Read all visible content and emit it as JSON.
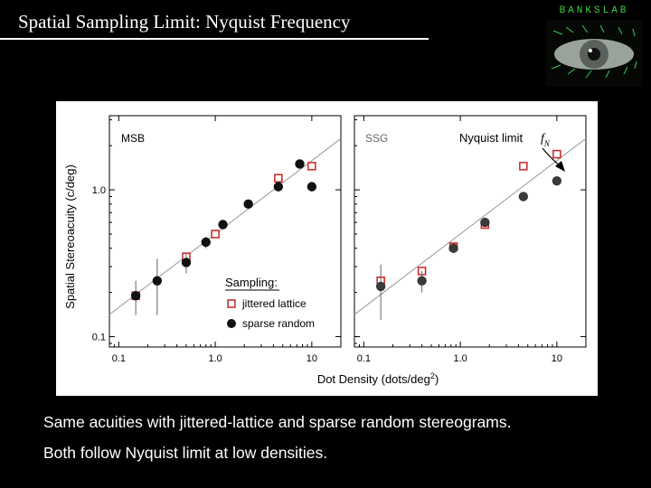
{
  "slide": {
    "title": "Spatial Sampling Limit: Nyquist Frequency",
    "logo_text": "BANKSLAB",
    "caption_lines": [
      "Same acuities with jittered-lattice and sparse random stereograms.",
      "Both follow Nyquist limit at low densities."
    ]
  },
  "colors": {
    "background": "#000000",
    "text": "#ffffff",
    "logo": "#3fd23f",
    "jittered": "#cc2222",
    "sparse": "#111111",
    "nyquist_line": "#999999"
  },
  "chart_data": {
    "type": "scatter",
    "shared_xlabel": "Dot Density (dots/deg",
    "shared_xlabel_sup": "2",
    "shared_xlabel_tail": ")",
    "ylabel": "Spatial Stereoacuity (c/deg)",
    "xscale": "log",
    "yscale": "log",
    "xlim": [
      0.08,
      20
    ],
    "ylim": [
      0.085,
      3.2
    ],
    "xticks": [
      0.1,
      1.0,
      10
    ],
    "xtick_labels": [
      "0.1",
      "1.0",
      "10"
    ],
    "yticks": [
      0.1,
      1.0
    ],
    "ytick_labels": [
      "0.1",
      "1.0"
    ],
    "legend": {
      "title": "Sampling:",
      "placement": "lower-right of left panel"
    },
    "nyquist_label": "Nyquist limit",
    "nyquist_symbol": "f",
    "nyquist_subscript": "N",
    "nyquist_line": {
      "slope": 0.5,
      "coefficient": 0.5
    },
    "series_names": [
      "jittered lattice",
      "sparse random"
    ],
    "panels": [
      {
        "label": "MSB",
        "series": [
          {
            "name": "jittered lattice",
            "marker": "open-square",
            "x": [
              0.15,
              0.5,
              1.0,
              4.5,
              10
            ],
            "y": [
              0.19,
              0.35,
              0.5,
              1.2,
              1.45
            ]
          },
          {
            "name": "sparse random",
            "marker": "filled-circle",
            "x": [
              0.15,
              0.25,
              0.5,
              0.8,
              1.2,
              2.2,
              4.5,
              7.5,
              10
            ],
            "y": [
              0.19,
              0.24,
              0.32,
              0.44,
              0.58,
              0.8,
              1.05,
              1.5,
              1.05
            ],
            "err": [
              0.05,
              0.1,
              0.05,
              0.04,
              0.04,
              0.04,
              0.05,
              0.06,
              0.05
            ]
          }
        ]
      },
      {
        "label": "SSG",
        "series": [
          {
            "name": "jittered lattice",
            "marker": "open-square",
            "x": [
              0.15,
              0.4,
              0.85,
              1.8,
              4.5,
              10
            ],
            "y": [
              0.24,
              0.28,
              0.41,
              0.58,
              1.45,
              1.75
            ]
          },
          {
            "name": "sparse random",
            "marker": "filled-circle",
            "x": [
              0.15,
              0.4,
              0.85,
              1.8,
              4.5,
              10
            ],
            "y": [
              0.22,
              0.24,
              0.4,
              0.6,
              0.9,
              1.15
            ],
            "err": [
              0.09,
              0.04,
              0.03,
              0.04,
              0.04,
              0.04
            ]
          }
        ]
      }
    ]
  }
}
